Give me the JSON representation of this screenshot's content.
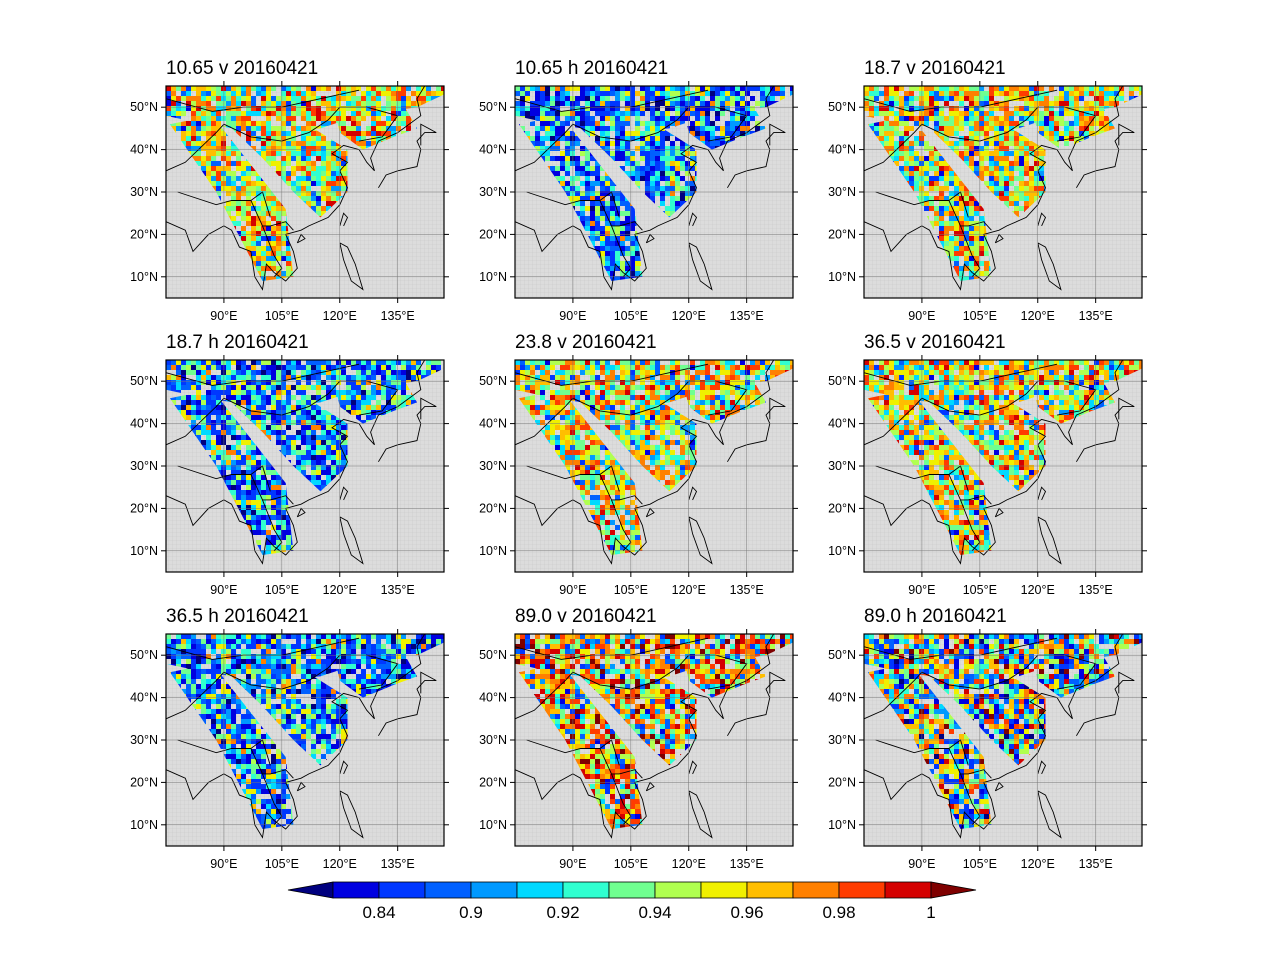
{
  "figure": {
    "panels": [
      {
        "title": "10.65 v 20160421",
        "show_lon_labels": true,
        "style": "warm"
      },
      {
        "title": "10.65 h 20160421",
        "show_lon_labels": true,
        "style": "cold"
      },
      {
        "title": "18.7 v 20160421",
        "show_lon_labels": true,
        "style": "warm"
      },
      {
        "title": "18.7 h 20160421",
        "show_lon_labels": true,
        "style": "cold"
      },
      {
        "title": "23.8 v 20160421",
        "show_lon_labels": true,
        "style": "warm"
      },
      {
        "title": "36.5 v 20160421",
        "show_lon_labels": true,
        "style": "warm"
      },
      {
        "title": "36.5 h 20160421",
        "show_lon_labels": true,
        "style": "cold"
      },
      {
        "title": "89.0 v 20160421",
        "show_lon_labels": true,
        "style": "hot"
      },
      {
        "title": "89.0 h 20160421",
        "show_lon_labels": true,
        "style": "mixed"
      }
    ],
    "lat_ticks": [
      {
        "value": 10,
        "label": "10°N"
      },
      {
        "value": 20,
        "label": "20°N"
      },
      {
        "value": 30,
        "label": "30°N"
      },
      {
        "value": 40,
        "label": "40°N"
      },
      {
        "value": 50,
        "label": "50°N"
      }
    ],
    "lon_ticks": [
      {
        "value": 90,
        "label": "90°E"
      },
      {
        "value": 105,
        "label": "105°E"
      },
      {
        "value": 120,
        "label": "120°E"
      },
      {
        "value": 135,
        "label": "135°E"
      }
    ],
    "lon_range": [
      75,
      147
    ],
    "lat_range": [
      5,
      55
    ],
    "background_color": "#dcdcdc"
  },
  "colorbar": {
    "colors": [
      "#00007f",
      "#0000e0",
      "#0037ff",
      "#0060ff",
      "#0099ff",
      "#00d9ff",
      "#30ffd0",
      "#70ff90",
      "#b0ff50",
      "#f0f000",
      "#ffbe00",
      "#ff8000",
      "#ff3c00",
      "#d40000",
      "#7f0000"
    ],
    "labels": [
      "0.84",
      "0.9",
      "0.92",
      "0.94",
      "0.96",
      "0.98",
      "1"
    ]
  }
}
